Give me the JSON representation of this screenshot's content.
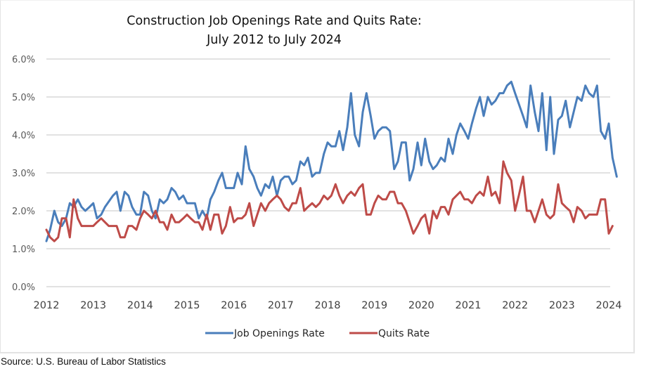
{
  "chart_data": {
    "type": "line",
    "title": "Construction Job Openings Rate and Quits Rate:",
    "subtitle": "July 2012 to July 2024",
    "xlabel": "",
    "ylabel": "",
    "x_ticks": [
      "2012",
      "2013",
      "2014",
      "2015",
      "2016",
      "2017",
      "2018",
      "2019",
      "2020",
      "2021",
      "2022",
      "2023",
      "2024"
    ],
    "y_ticks": [
      "0.0%",
      "1.0%",
      "2.0%",
      "3.0%",
      "4.0%",
      "5.0%",
      "6.0%"
    ],
    "xlim": [
      2012,
      2024
    ],
    "ylim": [
      0,
      6
    ],
    "grid": "horizontal",
    "legend_position": "bottom",
    "series": [
      {
        "name": "Job Openings Rate",
        "color": "#4a7ebb",
        "points": [
          [
            2012.0,
            1.2
          ],
          [
            2012.08,
            1.5
          ],
          [
            2012.17,
            2.0
          ],
          [
            2012.25,
            1.7
          ],
          [
            2012.33,
            1.6
          ],
          [
            2012.42,
            1.8
          ],
          [
            2012.5,
            2.2
          ],
          [
            2012.58,
            2.1
          ],
          [
            2012.67,
            2.3
          ],
          [
            2012.75,
            2.1
          ],
          [
            2012.83,
            2.0
          ],
          [
            2012.92,
            2.1
          ],
          [
            2013.0,
            2.2
          ],
          [
            2013.08,
            1.8
          ],
          [
            2013.17,
            1.9
          ],
          [
            2013.25,
            2.1
          ],
          [
            2013.42,
            2.4
          ],
          [
            2013.5,
            2.5
          ],
          [
            2013.58,
            2.0
          ],
          [
            2013.67,
            2.5
          ],
          [
            2013.75,
            2.4
          ],
          [
            2013.83,
            2.1
          ],
          [
            2013.92,
            1.9
          ],
          [
            2014.0,
            1.9
          ],
          [
            2014.08,
            2.5
          ],
          [
            2014.17,
            2.4
          ],
          [
            2014.25,
            2.0
          ],
          [
            2014.33,
            1.8
          ],
          [
            2014.42,
            2.3
          ],
          [
            2014.5,
            2.2
          ],
          [
            2014.58,
            2.3
          ],
          [
            2014.67,
            2.6
          ],
          [
            2014.75,
            2.5
          ],
          [
            2014.83,
            2.3
          ],
          [
            2014.92,
            2.4
          ],
          [
            2015.0,
            2.2
          ],
          [
            2015.08,
            2.2
          ],
          [
            2015.17,
            2.2
          ],
          [
            2015.25,
            1.8
          ],
          [
            2015.33,
            2.0
          ],
          [
            2015.42,
            1.8
          ],
          [
            2015.5,
            2.3
          ],
          [
            2015.58,
            2.5
          ],
          [
            2015.67,
            2.8
          ],
          [
            2015.75,
            3.0
          ],
          [
            2015.83,
            2.6
          ],
          [
            2015.92,
            2.6
          ],
          [
            2016.0,
            2.6
          ],
          [
            2016.08,
            3.0
          ],
          [
            2016.17,
            2.7
          ],
          [
            2016.25,
            3.7
          ],
          [
            2016.33,
            3.1
          ],
          [
            2016.42,
            2.9
          ],
          [
            2016.5,
            2.6
          ],
          [
            2016.58,
            2.4
          ],
          [
            2016.67,
            2.7
          ],
          [
            2016.75,
            2.6
          ],
          [
            2016.83,
            2.9
          ],
          [
            2016.92,
            2.4
          ],
          [
            2017.0,
            2.8
          ],
          [
            2017.08,
            2.9
          ],
          [
            2017.17,
            2.9
          ],
          [
            2017.25,
            2.7
          ],
          [
            2017.33,
            2.8
          ],
          [
            2017.42,
            3.3
          ],
          [
            2017.5,
            3.2
          ],
          [
            2017.58,
            3.4
          ],
          [
            2017.67,
            2.9
          ],
          [
            2017.75,
            3.0
          ],
          [
            2017.83,
            3.0
          ],
          [
            2017.92,
            3.5
          ],
          [
            2018.0,
            3.8
          ],
          [
            2018.08,
            3.7
          ],
          [
            2018.17,
            3.7
          ],
          [
            2018.25,
            4.1
          ],
          [
            2018.33,
            3.6
          ],
          [
            2018.42,
            4.2
          ],
          [
            2018.5,
            5.1
          ],
          [
            2018.58,
            4.0
          ],
          [
            2018.67,
            3.7
          ],
          [
            2018.75,
            4.6
          ],
          [
            2018.83,
            5.1
          ],
          [
            2018.92,
            4.5
          ],
          [
            2019.0,
            3.9
          ],
          [
            2019.08,
            4.1
          ],
          [
            2019.17,
            4.2
          ],
          [
            2019.25,
            4.2
          ],
          [
            2019.33,
            4.1
          ],
          [
            2019.42,
            3.1
          ],
          [
            2019.5,
            3.3
          ],
          [
            2019.58,
            3.8
          ],
          [
            2019.67,
            3.8
          ],
          [
            2019.75,
            2.8
          ],
          [
            2019.83,
            3.1
          ],
          [
            2019.92,
            3.8
          ],
          [
            2020.0,
            3.2
          ],
          [
            2020.08,
            3.9
          ],
          [
            2020.17,
            3.3
          ],
          [
            2020.25,
            3.1
          ],
          [
            2020.33,
            3.2
          ],
          [
            2020.42,
            3.4
          ],
          [
            2020.5,
            3.3
          ],
          [
            2020.58,
            3.9
          ],
          [
            2020.67,
            3.5
          ],
          [
            2020.75,
            4.0
          ],
          [
            2020.83,
            4.3
          ],
          [
            2020.92,
            4.1
          ],
          [
            2021.0,
            3.9
          ],
          [
            2021.08,
            4.3
          ],
          [
            2021.17,
            4.7
          ],
          [
            2021.25,
            5.0
          ],
          [
            2021.33,
            4.5
          ],
          [
            2021.42,
            5.0
          ],
          [
            2021.5,
            4.8
          ],
          [
            2021.58,
            4.9
          ],
          [
            2021.67,
            5.1
          ],
          [
            2021.75,
            5.1
          ],
          [
            2021.83,
            5.3
          ],
          [
            2021.92,
            5.4
          ],
          [
            2022.0,
            5.1
          ],
          [
            2022.17,
            4.5
          ],
          [
            2022.25,
            4.2
          ],
          [
            2022.33,
            5.3
          ],
          [
            2022.42,
            4.6
          ],
          [
            2022.5,
            4.1
          ],
          [
            2022.58,
            5.1
          ],
          [
            2022.67,
            3.6
          ],
          [
            2022.75,
            5.0
          ],
          [
            2022.83,
            3.5
          ],
          [
            2022.92,
            4.4
          ],
          [
            2023.0,
            4.5
          ],
          [
            2023.08,
            4.9
          ],
          [
            2023.17,
            4.2
          ],
          [
            2023.25,
            4.6
          ],
          [
            2023.33,
            5.0
          ],
          [
            2023.42,
            4.9
          ],
          [
            2023.5,
            5.3
          ],
          [
            2023.58,
            5.1
          ],
          [
            2023.67,
            5.0
          ],
          [
            2023.75,
            5.3
          ],
          [
            2023.83,
            4.1
          ],
          [
            2023.92,
            3.9
          ],
          [
            2024.0,
            4.3
          ],
          [
            2024.08,
            3.4
          ],
          [
            2024.17,
            2.9
          ]
        ]
      },
      {
        "name": "Quits Rate",
        "color": "#be4b48",
        "points": [
          [
            2012.0,
            1.5
          ],
          [
            2012.08,
            1.3
          ],
          [
            2012.17,
            1.2
          ],
          [
            2012.25,
            1.3
          ],
          [
            2012.33,
            1.8
          ],
          [
            2012.42,
            1.8
          ],
          [
            2012.5,
            1.3
          ],
          [
            2012.58,
            2.3
          ],
          [
            2012.67,
            1.8
          ],
          [
            2012.75,
            1.6
          ],
          [
            2012.83,
            1.6
          ],
          [
            2012.92,
            1.6
          ],
          [
            2013.0,
            1.6
          ],
          [
            2013.08,
            1.7
          ],
          [
            2013.17,
            1.8
          ],
          [
            2013.25,
            1.7
          ],
          [
            2013.33,
            1.6
          ],
          [
            2013.42,
            1.6
          ],
          [
            2013.5,
            1.6
          ],
          [
            2013.58,
            1.3
          ],
          [
            2013.67,
            1.3
          ],
          [
            2013.75,
            1.6
          ],
          [
            2013.83,
            1.6
          ],
          [
            2013.92,
            1.5
          ],
          [
            2014.0,
            1.8
          ],
          [
            2014.08,
            2.0
          ],
          [
            2014.17,
            1.9
          ],
          [
            2014.25,
            1.8
          ],
          [
            2014.33,
            2.0
          ],
          [
            2014.42,
            1.7
          ],
          [
            2014.5,
            1.7
          ],
          [
            2014.58,
            1.5
          ],
          [
            2014.67,
            1.9
          ],
          [
            2014.75,
            1.7
          ],
          [
            2014.83,
            1.7
          ],
          [
            2014.92,
            1.8
          ],
          [
            2015.0,
            1.9
          ],
          [
            2015.08,
            1.8
          ],
          [
            2015.17,
            1.7
          ],
          [
            2015.25,
            1.7
          ],
          [
            2015.33,
            1.5
          ],
          [
            2015.42,
            1.9
          ],
          [
            2015.5,
            1.5
          ],
          [
            2015.58,
            1.9
          ],
          [
            2015.67,
            1.9
          ],
          [
            2015.75,
            1.4
          ],
          [
            2015.83,
            1.6
          ],
          [
            2015.92,
            2.1
          ],
          [
            2016.0,
            1.7
          ],
          [
            2016.08,
            1.8
          ],
          [
            2016.17,
            1.8
          ],
          [
            2016.25,
            1.9
          ],
          [
            2016.33,
            2.2
          ],
          [
            2016.42,
            1.6
          ],
          [
            2016.5,
            1.9
          ],
          [
            2016.58,
            2.2
          ],
          [
            2016.67,
            2.0
          ],
          [
            2016.75,
            2.2
          ],
          [
            2016.83,
            2.3
          ],
          [
            2016.92,
            2.4
          ],
          [
            2017.0,
            2.3
          ],
          [
            2017.08,
            2.1
          ],
          [
            2017.17,
            2.0
          ],
          [
            2017.25,
            2.2
          ],
          [
            2017.33,
            2.2
          ],
          [
            2017.42,
            2.6
          ],
          [
            2017.5,
            2.0
          ],
          [
            2017.58,
            2.1
          ],
          [
            2017.67,
            2.2
          ],
          [
            2017.75,
            2.1
          ],
          [
            2017.83,
            2.2
          ],
          [
            2017.92,
            2.4
          ],
          [
            2018.0,
            2.3
          ],
          [
            2018.08,
            2.4
          ],
          [
            2018.17,
            2.7
          ],
          [
            2018.25,
            2.4
          ],
          [
            2018.33,
            2.2
          ],
          [
            2018.42,
            2.4
          ],
          [
            2018.5,
            2.5
          ],
          [
            2018.58,
            2.4
          ],
          [
            2018.67,
            2.6
          ],
          [
            2018.75,
            2.7
          ],
          [
            2018.83,
            1.9
          ],
          [
            2018.92,
            1.9
          ],
          [
            2019.0,
            2.2
          ],
          [
            2019.08,
            2.4
          ],
          [
            2019.17,
            2.3
          ],
          [
            2019.25,
            2.3
          ],
          [
            2019.33,
            2.5
          ],
          [
            2019.42,
            2.5
          ],
          [
            2019.5,
            2.2
          ],
          [
            2019.58,
            2.2
          ],
          [
            2019.67,
            2.0
          ],
          [
            2019.75,
            1.7
          ],
          [
            2019.83,
            1.4
          ],
          [
            2019.92,
            1.6
          ],
          [
            2020.0,
            1.8
          ],
          [
            2020.08,
            1.9
          ],
          [
            2020.17,
            1.4
          ],
          [
            2020.25,
            2.0
          ],
          [
            2020.33,
            1.8
          ],
          [
            2020.42,
            2.1
          ],
          [
            2020.5,
            2.1
          ],
          [
            2020.58,
            1.9
          ],
          [
            2020.67,
            2.3
          ],
          [
            2020.75,
            2.4
          ],
          [
            2020.83,
            2.5
          ],
          [
            2020.92,
            2.3
          ],
          [
            2021.0,
            2.3
          ],
          [
            2021.08,
            2.2
          ],
          [
            2021.17,
            2.4
          ],
          [
            2021.25,
            2.5
          ],
          [
            2021.33,
            2.4
          ],
          [
            2021.42,
            2.9
          ],
          [
            2021.5,
            2.4
          ],
          [
            2021.58,
            2.5
          ],
          [
            2021.67,
            2.2
          ],
          [
            2021.75,
            3.3
          ],
          [
            2021.83,
            3.0
          ],
          [
            2021.92,
            2.8
          ],
          [
            2022.0,
            2.0
          ],
          [
            2022.08,
            2.4
          ],
          [
            2022.17,
            2.9
          ],
          [
            2022.25,
            2.0
          ],
          [
            2022.33,
            2.0
          ],
          [
            2022.42,
            1.7
          ],
          [
            2022.5,
            2.0
          ],
          [
            2022.58,
            2.3
          ],
          [
            2022.67,
            1.9
          ],
          [
            2022.75,
            1.8
          ],
          [
            2022.83,
            1.9
          ],
          [
            2022.92,
            2.7
          ],
          [
            2023.0,
            2.2
          ],
          [
            2023.08,
            2.1
          ],
          [
            2023.17,
            2.0
          ],
          [
            2023.25,
            1.7
          ],
          [
            2023.33,
            2.1
          ],
          [
            2023.42,
            2.0
          ],
          [
            2023.5,
            1.8
          ],
          [
            2023.58,
            1.9
          ],
          [
            2023.67,
            1.9
          ],
          [
            2023.75,
            1.9
          ],
          [
            2023.83,
            2.3
          ],
          [
            2023.92,
            2.3
          ],
          [
            2024.0,
            1.4
          ],
          [
            2024.08,
            1.6
          ]
        ]
      }
    ]
  },
  "source": "Source: U.S. Bureau of Labor Statistics"
}
